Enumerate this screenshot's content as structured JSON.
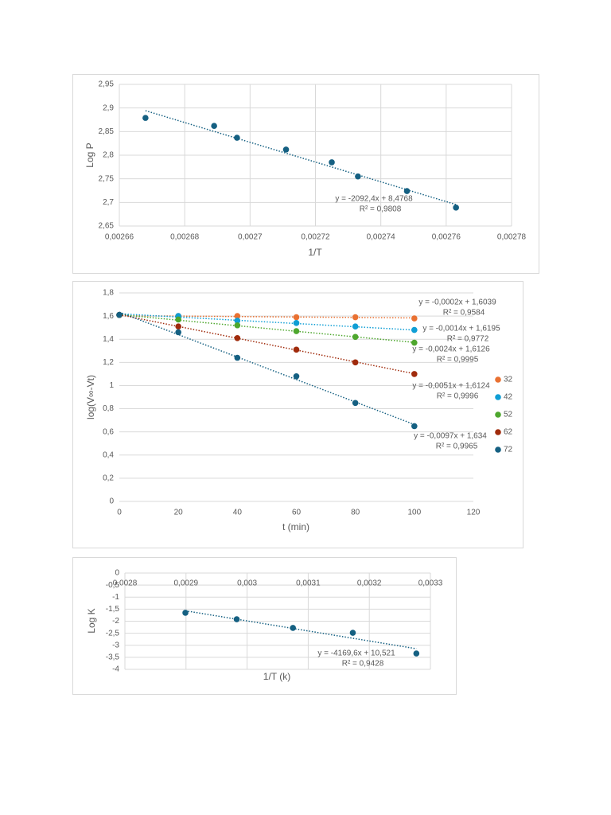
{
  "chart_data": [
    {
      "type": "scatter",
      "xlabel": "1/T",
      "ylabel": "Log P",
      "grid": "both",
      "xlim": [
        0.00266,
        0.00278
      ],
      "xticks": [
        {
          "value": 0.00266,
          "label": "0,00266"
        },
        {
          "value": 0.00268,
          "label": "0,00268"
        },
        {
          "value": 0.0027,
          "label": "0,0027"
        },
        {
          "value": 0.00272,
          "label": "0,00272"
        },
        {
          "value": 0.00274,
          "label": "0,00274"
        },
        {
          "value": 0.00276,
          "label": "0,00276"
        },
        {
          "value": 0.00278,
          "label": "0,00278"
        }
      ],
      "ylim": [
        2.65,
        2.95
      ],
      "yticks": [
        {
          "value": 2.65,
          "label": "2,65"
        },
        {
          "value": 2.7,
          "label": "2,7"
        },
        {
          "value": 2.75,
          "label": "2,75"
        },
        {
          "value": 2.8,
          "label": "2,8"
        },
        {
          "value": 2.85,
          "label": "2,85"
        },
        {
          "value": 2.9,
          "label": "2,9"
        },
        {
          "value": 2.95,
          "label": "2,95"
        }
      ],
      "series": [
        {
          "color": "#156082",
          "x": [
            0.002668,
            0.002689,
            0.002696,
            0.002711,
            0.002725,
            0.002733,
            0.002748,
            0.002763
          ],
          "values": [
            2.879,
            2.862,
            2.837,
            2.812,
            2.785,
            2.755,
            2.724,
            2.689
          ],
          "trendline": {
            "slope": -2092.4,
            "intercept": 8.4768,
            "label": "y = -2092,4x + 8,4768",
            "r2_label": "R² = 0,9808"
          }
        }
      ]
    },
    {
      "type": "scatter",
      "xlabel": "t (min)",
      "ylabel": "log(V∞-Vt)",
      "grid": "y",
      "xlim": [
        0,
        120
      ],
      "xticks": [
        0,
        20,
        40,
        60,
        80,
        100,
        120
      ],
      "ylim": [
        0,
        1.8
      ],
      "yticks": [
        0,
        {
          "value": 0.2,
          "label": "0,2"
        },
        {
          "value": 0.4,
          "label": "0,4"
        },
        {
          "value": 0.6,
          "label": "0,6"
        },
        {
          "value": 0.8,
          "label": "0,8"
        },
        1,
        {
          "value": 1.2,
          "label": "1,2"
        },
        {
          "value": 1.4,
          "label": "1,4"
        },
        {
          "value": 1.6,
          "label": "1,6"
        },
        {
          "value": 1.8,
          "label": "1,8"
        }
      ],
      "x": [
        0,
        20,
        40,
        60,
        80,
        100
      ],
      "series": [
        {
          "name": "32",
          "color": "#e97132",
          "values": [
            1.61,
            1.6,
            1.6,
            1.59,
            1.59,
            1.58
          ],
          "trendline": {
            "slope": -0.0002,
            "intercept": 1.6039,
            "label": "y = -0,0002x + 1,6039",
            "r2_label": "R² = 0,9584"
          }
        },
        {
          "name": "42",
          "color": "#0f9ed5",
          "values": [
            1.61,
            1.6,
            1.56,
            1.54,
            1.51,
            1.48
          ],
          "trendline": {
            "slope": -0.0014,
            "intercept": 1.6195,
            "label": "y = -0,0014x + 1,6195",
            "r2_label": "R² = 0,9772"
          }
        },
        {
          "name": "52",
          "color": "#4ea72e",
          "values": [
            1.61,
            1.57,
            1.52,
            1.47,
            1.42,
            1.37
          ],
          "trendline": {
            "slope": -0.0024,
            "intercept": 1.6126,
            "label": "y = -0,0024x + 1,6126",
            "r2_label": "R² = 0,9995"
          }
        },
        {
          "name": "62",
          "color": "#a02b0c",
          "values": [
            1.61,
            1.51,
            1.41,
            1.31,
            1.2,
            1.1
          ],
          "trendline": {
            "slope": -0.0051,
            "intercept": 1.6124,
            "label": "y = -0,0051x + 1,6124",
            "r2_label": "R² = 0,9996"
          }
        },
        {
          "name": "72",
          "color": "#156082",
          "values": [
            1.61,
            1.46,
            1.24,
            1.08,
            0.85,
            0.65
          ],
          "trendline": {
            "slope": -0.0097,
            "intercept": 1.634,
            "label": "y = -0,0097x + 1,634",
            "r2_label": "R² = 0,9965"
          }
        }
      ]
    },
    {
      "type": "scatter",
      "xlabel": "1/T (k)",
      "ylabel": "Log K",
      "grid": "both",
      "xlim": [
        0.0028,
        0.0033
      ],
      "xticks": [
        {
          "value": 0.0028,
          "label": "0,0028"
        },
        {
          "value": 0.0029,
          "label": "0,0029"
        },
        {
          "value": 0.003,
          "label": "0,003"
        },
        {
          "value": 0.0031,
          "label": "0,0031"
        },
        {
          "value": 0.0032,
          "label": "0,0032"
        },
        {
          "value": 0.0033,
          "label": "0,0033"
        }
      ],
      "ylim": [
        -4,
        0
      ],
      "yticks": [
        -4,
        {
          "value": -3.5,
          "label": "-3,5"
        },
        -3,
        {
          "value": -2.5,
          "label": "-2,5"
        },
        -2,
        {
          "value": -1.5,
          "label": "-1,5"
        },
        -1,
        {
          "value": -0.5,
          "label": "-0,5"
        },
        0
      ],
      "series": [
        {
          "color": "#156082",
          "x": [
            0.002899,
            0.002983,
            0.003075,
            0.003173,
            0.003277
          ],
          "values": [
            -1.65,
            -1.92,
            -2.28,
            -2.48,
            -3.34
          ],
          "trendline": {
            "slope": -4169.6,
            "intercept": 10.521,
            "label": "y = -4169,6x + 10,521",
            "r2_label": "R² = 0,9428"
          }
        }
      ]
    }
  ]
}
